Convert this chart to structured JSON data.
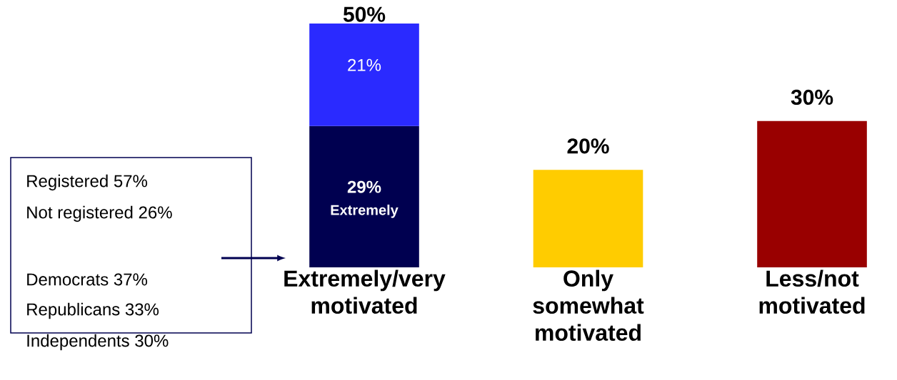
{
  "chart_data": {
    "type": "bar",
    "stacked": true,
    "categories": [
      "Extremely/very motivated",
      "Only somewhat motivated",
      "Less/not motivated"
    ],
    "series": [
      {
        "name": "Extremely",
        "colors": [
          "#000050",
          "#ffcc00",
          "#990000"
        ],
        "values": [
          29,
          20,
          30
        ],
        "value_labels": [
          "29%",
          null,
          null
        ]
      },
      {
        "color": "#2a2aff",
        "values": [
          21,
          null,
          null
        ],
        "value_labels": [
          "21%",
          null,
          null
        ]
      }
    ],
    "totals": [
      "50%",
      "20%",
      "30%"
    ],
    "annotations": [
      "Registered 57%",
      "Not registered 26%",
      "Democrats 37%",
      "Republicans 33%",
      "Independents 30%"
    ]
  }
}
